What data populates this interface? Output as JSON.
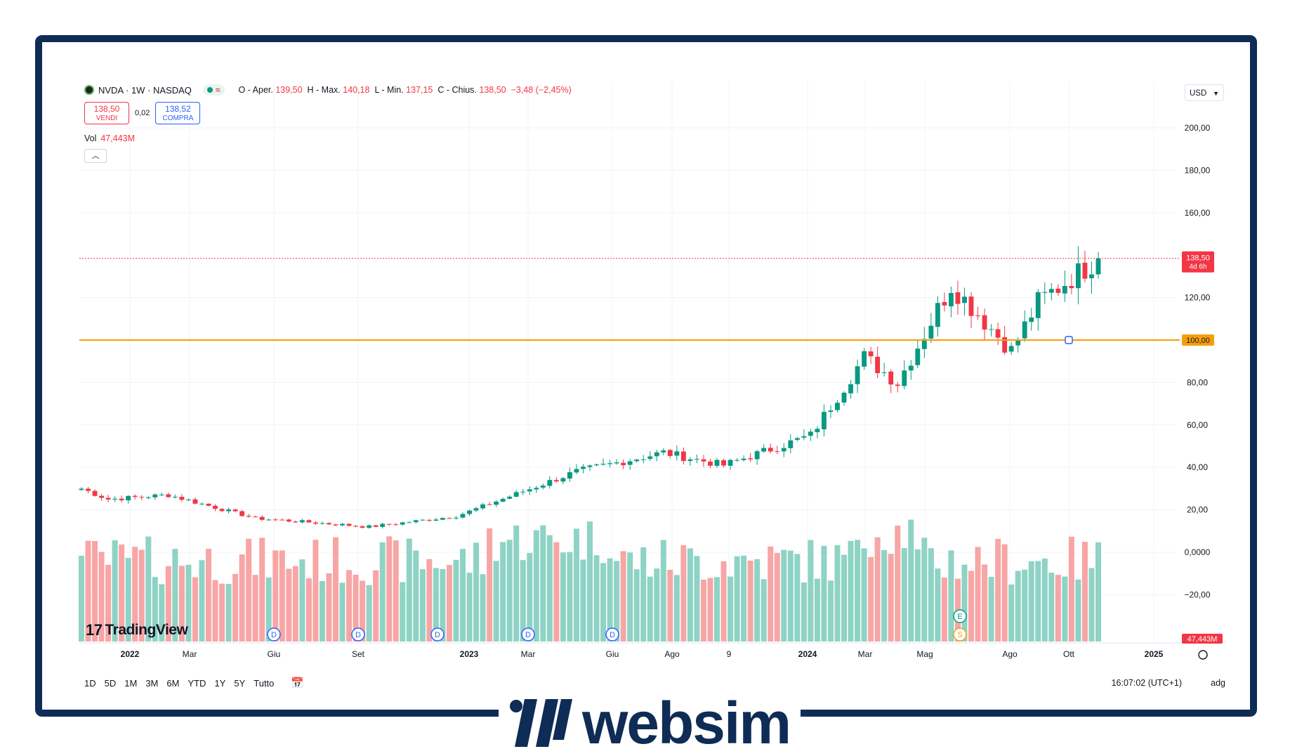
{
  "header": {
    "symbol_line": "NVDA · 1W · NASDAQ",
    "ohlc": [
      {
        "label": "O - Aper.",
        "value": "139,50"
      },
      {
        "label": "H - Max.",
        "value": "140,18"
      },
      {
        "label": "L - Min.",
        "value": "137,15"
      },
      {
        "label": "C - Chius.",
        "value": "138,50"
      }
    ],
    "change": "−3,48 (−2,45%)",
    "sell_price": "138,50",
    "sell_label": "VENDI",
    "spread": "0,02",
    "buy_price": "138,52",
    "buy_label": "COMPRA",
    "vol_label": "Vol",
    "vol_value": "47,443M",
    "collapse_icon": "chevron-up-icon",
    "pill_icons": [
      "green-dot-icon",
      "wave-icon"
    ],
    "currency": "USD"
  },
  "bottom_bar": {
    "ranges": [
      "1D",
      "5D",
      "1M",
      "3M",
      "6M",
      "YTD",
      "1Y",
      "5Y",
      "Tutto"
    ],
    "calendar_icon": "calendar-icon",
    "clock": "16:07:02 (UTC+1)",
    "adjust": "adg"
  },
  "brand": {
    "tradingview": "TradingView",
    "websim": "websim"
  },
  "colors": {
    "up": "#089981",
    "down": "#f23645",
    "vol_up": "#8ed3c5",
    "vol_down": "#f7a5a5",
    "hline": "#f59e0b",
    "frame": "#0e2c55"
  },
  "chart_data": {
    "type": "candlestick",
    "symbol": "NVDA",
    "interval": "1W",
    "x_tick_labels": [
      "2022",
      "Mar",
      "Giu",
      "Set",
      "2023",
      "Mar",
      "Giu",
      "Ago",
      "9",
      "2024",
      "Mar",
      "Mag",
      "Ago",
      "Ott",
      "2025"
    ],
    "y_tick_labels": [
      "200,00",
      "180,00",
      "160,00",
      "120,00",
      "100,00",
      "80,00",
      "60,00",
      "40,00",
      "20,00",
      "0,0000",
      "−20,00"
    ],
    "ylim": [
      -20,
      200
    ],
    "last_price_label": "138,50",
    "countdown_label": "4d 6h",
    "horizontal_line": {
      "value": 100,
      "label": "100,00"
    },
    "volume_label": "47,443M",
    "price_checkpoints": [
      {
        "date": "2021-12",
        "close": 30
      },
      {
        "date": "2022-01",
        "close": 25
      },
      {
        "date": "2022-03",
        "close": 27
      },
      {
        "date": "2022-06",
        "close": 16
      },
      {
        "date": "2022-10",
        "close": 12
      },
      {
        "date": "2023-01",
        "close": 17
      },
      {
        "date": "2023-05",
        "close": 38
      },
      {
        "date": "2023-08",
        "close": 47
      },
      {
        "date": "2023-10",
        "close": 41
      },
      {
        "date": "2024-01",
        "close": 55
      },
      {
        "date": "2024-03",
        "close": 92
      },
      {
        "date": "2024-04",
        "close": 80
      },
      {
        "date": "2024-06",
        "close": 126
      },
      {
        "date": "2024-08",
        "close": 95
      },
      {
        "date": "2024-09",
        "close": 118
      },
      {
        "date": "2024-11",
        "close": 138.5
      }
    ],
    "event_markers": [
      {
        "type": "D",
        "label": "D"
      },
      {
        "type": "D",
        "label": "D"
      },
      {
        "type": "D",
        "label": "D"
      },
      {
        "type": "D",
        "label": "D"
      },
      {
        "type": "D",
        "label": "D"
      },
      {
        "type": "E",
        "label": "E"
      },
      {
        "type": "S",
        "label": "S"
      }
    ]
  }
}
